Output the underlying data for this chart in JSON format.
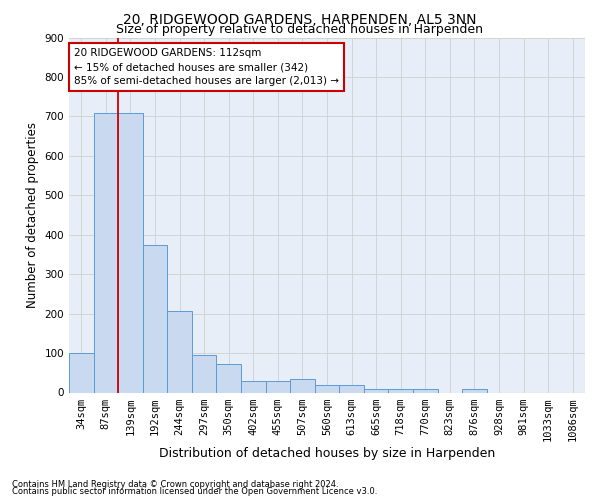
{
  "title": "20, RIDGEWOOD GARDENS, HARPENDEN, AL5 3NN",
  "subtitle": "Size of property relative to detached houses in Harpenden",
  "xlabel": "Distribution of detached houses by size in Harpenden",
  "ylabel": "Number of detached properties",
  "footnote1": "Contains HM Land Registry data © Crown copyright and database right 2024.",
  "footnote2": "Contains public sector information licensed under the Open Government Licence v3.0.",
  "categories": [
    "34sqm",
    "87sqm",
    "139sqm",
    "192sqm",
    "244sqm",
    "297sqm",
    "350sqm",
    "402sqm",
    "455sqm",
    "507sqm",
    "560sqm",
    "613sqm",
    "665sqm",
    "718sqm",
    "770sqm",
    "823sqm",
    "876sqm",
    "928sqm",
    "981sqm",
    "1033sqm",
    "1086sqm"
  ],
  "values": [
    101,
    708,
    708,
    375,
    207,
    96,
    72,
    30,
    30,
    35,
    20,
    20,
    10,
    10,
    10,
    0,
    10,
    0,
    0,
    0,
    0
  ],
  "bar_color": "#c9d9f0",
  "bar_edge_color": "#5b9bd5",
  "bg_color": "#e8eef8",
  "grid_color": "#d0d0d0",
  "annotation_text": "20 RIDGEWOOD GARDENS: 112sqm\n← 15% of detached houses are smaller (342)\n85% of semi-detached houses are larger (2,013) →",
  "annotation_box_color": "#ffffff",
  "annotation_box_edge": "#cc0000",
  "vline_x": 1.5,
  "vline_color": "#cc0000",
  "ylim": [
    0,
    900
  ],
  "yticks": [
    0,
    100,
    200,
    300,
    400,
    500,
    600,
    700,
    800,
    900
  ],
  "title_fontsize": 10,
  "subtitle_fontsize": 9,
  "xlabel_fontsize": 9,
  "ylabel_fontsize": 8.5,
  "tick_fontsize": 7.5,
  "annot_fontsize": 7.5
}
